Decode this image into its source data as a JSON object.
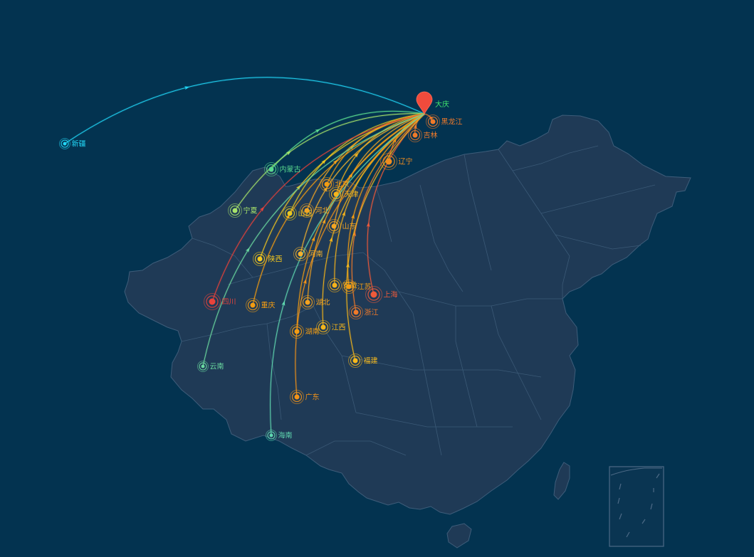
{
  "map": {
    "background_color": "#033350",
    "land_fill": "#1f3a56",
    "province_stroke": "#3e5d7a",
    "inset_box": "south-china-sea-islands",
    "destination": {
      "name": "大庆",
      "marker_icon": "map-pin-icon",
      "marker_color": "#f04b3c",
      "label_color": "#3fe26e"
    },
    "origins": [
      {
        "name": "新疆",
        "color": "#21d4f4"
      },
      {
        "name": "内蒙古",
        "color": "#59d98e"
      },
      {
        "name": "宁夏",
        "color": "#a7e36a"
      },
      {
        "name": "黑龙江",
        "color": "#f07a2a"
      },
      {
        "name": "吉林",
        "color": "#f07a2a"
      },
      {
        "name": "辽宁",
        "color": "#f08d1f"
      },
      {
        "name": "北京",
        "color": "#f39c12"
      },
      {
        "name": "天津",
        "color": "#f6b51c"
      },
      {
        "name": "山西",
        "color": "#e6c822"
      },
      {
        "name": "河北",
        "color": "#f5a623"
      },
      {
        "name": "山东",
        "color": "#f5a623"
      },
      {
        "name": "陕西",
        "color": "#f4c81e"
      },
      {
        "name": "河南",
        "color": "#f3b12d"
      },
      {
        "name": "安徽",
        "color": "#f5b21c"
      },
      {
        "name": "江苏",
        "color": "#f39c12"
      },
      {
        "name": "上海",
        "color": "#ef5a3a"
      },
      {
        "name": "四川",
        "color": "#e8433b"
      },
      {
        "name": "重庆",
        "color": "#f39c12"
      },
      {
        "name": "湖北",
        "color": "#f3a21f"
      },
      {
        "name": "浙江",
        "color": "#f07a2a"
      },
      {
        "name": "湖南",
        "color": "#f39c12"
      },
      {
        "name": "江西",
        "color": "#f4b51b"
      },
      {
        "name": "云南",
        "color": "#6ad9a0"
      },
      {
        "name": "福建",
        "color": "#f5b81c"
      },
      {
        "name": "广东",
        "color": "#f39318"
      },
      {
        "name": "海南",
        "color": "#5fd7b0"
      }
    ]
  }
}
